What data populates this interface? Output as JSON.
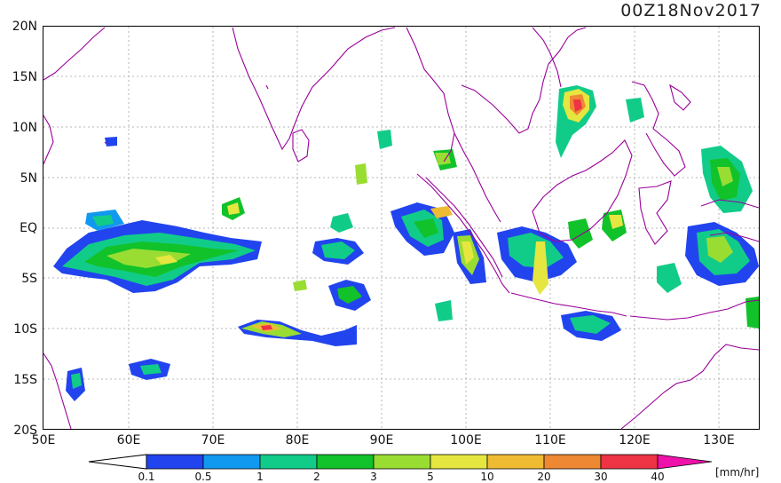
{
  "title": "00Z18Nov2017",
  "lat_labels": [
    "20N",
    "15N",
    "10N",
    "5N",
    "EQ",
    "5S",
    "10S",
    "15S",
    "20S"
  ],
  "lon_labels": [
    "50E",
    "60E",
    "70E",
    "80E",
    "90E",
    "100E",
    "110E",
    "120E",
    "130E"
  ],
  "colorbar": {
    "units": "[mm/hr]",
    "ticks": [
      "0.1",
      "0.5",
      "1",
      "2",
      "3",
      "5",
      "10",
      "20",
      "30",
      "40"
    ],
    "colors": [
      "#2244ee",
      "#1199f0",
      "#11cc88",
      "#11c22a",
      "#99dd33",
      "#e6e640",
      "#eebb33",
      "#ee8833",
      "#ee3344",
      "#ee11aa"
    ]
  },
  "coastline_color": "#990099"
}
